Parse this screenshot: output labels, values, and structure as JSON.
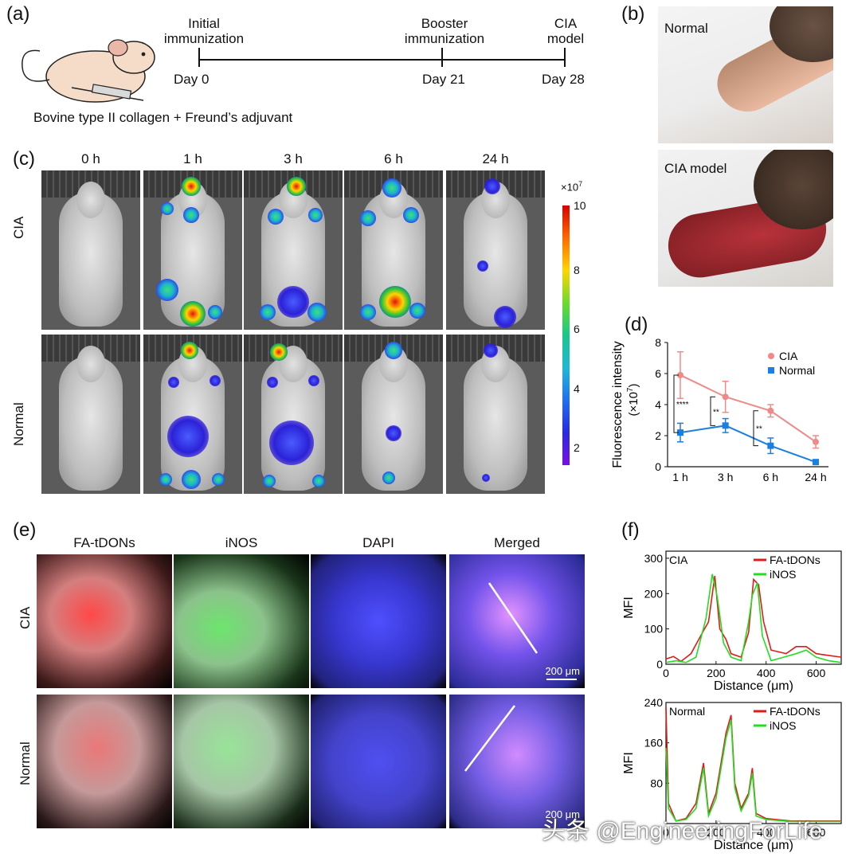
{
  "panel_labels": {
    "a": "(a)",
    "b": "(b)",
    "c": "(c)",
    "d": "(d)",
    "e": "(e)",
    "f": "(f)"
  },
  "panel_a": {
    "events": [
      {
        "top": "Initial",
        "top2": "immunization",
        "day": "Day 0"
      },
      {
        "top": "Booster",
        "top2": "immunization",
        "day": "Day 21"
      },
      {
        "top": "CIA",
        "top2": "model",
        "day": "Day 28"
      }
    ],
    "caption": "Bovine type II collagen + Freund’s adjuvant"
  },
  "panel_b": {
    "normal_label": "Normal",
    "cia_label": "CIA model"
  },
  "panel_c": {
    "timepoints": [
      "0 h",
      "1 h",
      "3 h",
      "6 h",
      "24 h"
    ],
    "rows": [
      "CIA",
      "Normal"
    ],
    "scale_unit": "×10",
    "scale_exp": "7",
    "scale_ticks": [
      "10",
      "8",
      "6",
      "4",
      "2"
    ]
  },
  "panel_e": {
    "columns": [
      "FA-tDONs",
      "iNOS",
      "DAPI",
      "Merged"
    ],
    "rows": [
      "CIA",
      "Normal"
    ],
    "scalebar": "200 μm"
  },
  "watermark": "头条 @EngineeringForLife",
  "chart_data": [
    {
      "type": "line",
      "panel": "d",
      "categories": [
        "1 h",
        "3 h",
        "6 h",
        "24 h"
      ],
      "ylabel": "Fluorescence intensity",
      "ylabel2": "(×10",
      "ylabel2_exp": "7",
      "ylabel2_end": ")",
      "ylim": [
        0,
        8
      ],
      "yticks": [
        "0",
        "2",
        "4",
        "6",
        "8"
      ],
      "series": [
        {
          "name": "CIA",
          "values": [
            5.9,
            4.5,
            3.6,
            1.6
          ],
          "errors": [
            1.5,
            1.0,
            0.4,
            0.4
          ],
          "color": "#f08a8a"
        },
        {
          "name": "Normal",
          "values": [
            2.2,
            2.65,
            1.35,
            0.3
          ],
          "errors": [
            0.6,
            0.45,
            0.5,
            0.1
          ],
          "color": "#1a7fe0"
        }
      ],
      "significance": [
        "****",
        "**",
        "**"
      ]
    },
    {
      "type": "line",
      "panel": "f-top",
      "title": "CIA",
      "xlabel": "Distance (μm)",
      "ylabel": "MFI",
      "xlim": [
        0,
        700
      ],
      "ylim": [
        0,
        320
      ],
      "xticks": [
        "0",
        "200",
        "400",
        "600"
      ],
      "yticks": [
        "0",
        "100",
        "200",
        "300"
      ],
      "series": [
        {
          "name": "FA-tDONs",
          "color": "#e01b1b",
          "values": [
            [
              0,
              15
            ],
            [
              30,
              22
            ],
            [
              60,
              8
            ],
            [
              100,
              30
            ],
            [
              150,
              95
            ],
            [
              170,
              120
            ],
            [
              195,
              250
            ],
            [
              215,
              100
            ],
            [
              240,
              70
            ],
            [
              260,
              30
            ],
            [
              300,
              20
            ],
            [
              330,
              90
            ],
            [
              350,
              240
            ],
            [
              370,
              225
            ],
            [
              390,
              120
            ],
            [
              420,
              40
            ],
            [
              480,
              30
            ],
            [
              520,
              50
            ],
            [
              560,
              50
            ],
            [
              600,
              30
            ],
            [
              650,
              25
            ],
            [
              700,
              20
            ]
          ]
        },
        {
          "name": "iNOS",
          "color": "#22dd22",
          "values": [
            [
              0,
              5
            ],
            [
              40,
              10
            ],
            [
              80,
              5
            ],
            [
              120,
              20
            ],
            [
              160,
              130
            ],
            [
              185,
              255
            ],
            [
              205,
              190
            ],
            [
              230,
              60
            ],
            [
              260,
              20
            ],
            [
              300,
              10
            ],
            [
              330,
              120
            ],
            [
              345,
              195
            ],
            [
              365,
              230
            ],
            [
              385,
              80
            ],
            [
              420,
              10
            ],
            [
              470,
              20
            ],
            [
              520,
              30
            ],
            [
              560,
              40
            ],
            [
              600,
              20
            ],
            [
              650,
              10
            ],
            [
              700,
              5
            ]
          ]
        }
      ]
    },
    {
      "type": "line",
      "panel": "f-bottom",
      "title": "Normal",
      "xlabel": "Distance (μm)",
      "ylabel": "MFI",
      "xlim": [
        0,
        700
      ],
      "ylim": [
        0,
        240
      ],
      "xticks": [
        "0",
        "200",
        "400",
        "600"
      ],
      "yticks": [
        "80",
        "160",
        "240"
      ],
      "series": [
        {
          "name": "FA-tDONs",
          "color": "#e01b1b",
          "values": [
            [
              0,
              230
            ],
            [
              10,
              40
            ],
            [
              40,
              5
            ],
            [
              80,
              10
            ],
            [
              120,
              40
            ],
            [
              150,
              120
            ],
            [
              170,
              20
            ],
            [
              200,
              60
            ],
            [
              240,
              180
            ],
            [
              260,
              215
            ],
            [
              275,
              80
            ],
            [
              300,
              30
            ],
            [
              330,
              60
            ],
            [
              345,
              110
            ],
            [
              360,
              20
            ],
            [
              400,
              10
            ],
            [
              500,
              5
            ],
            [
              600,
              5
            ],
            [
              700,
              5
            ]
          ]
        },
        {
          "name": "iNOS",
          "color": "#22dd22",
          "values": [
            [
              0,
              150
            ],
            [
              10,
              30
            ],
            [
              40,
              5
            ],
            [
              80,
              8
            ],
            [
              120,
              30
            ],
            [
              150,
              110
            ],
            [
              170,
              15
            ],
            [
              200,
              50
            ],
            [
              240,
              170
            ],
            [
              260,
              205
            ],
            [
              275,
              70
            ],
            [
              300,
              25
            ],
            [
              330,
              55
            ],
            [
              345,
              100
            ],
            [
              360,
              15
            ],
            [
              400,
              8
            ],
            [
              500,
              4
            ],
            [
              600,
              4
            ],
            [
              700,
              4
            ]
          ]
        }
      ]
    }
  ]
}
